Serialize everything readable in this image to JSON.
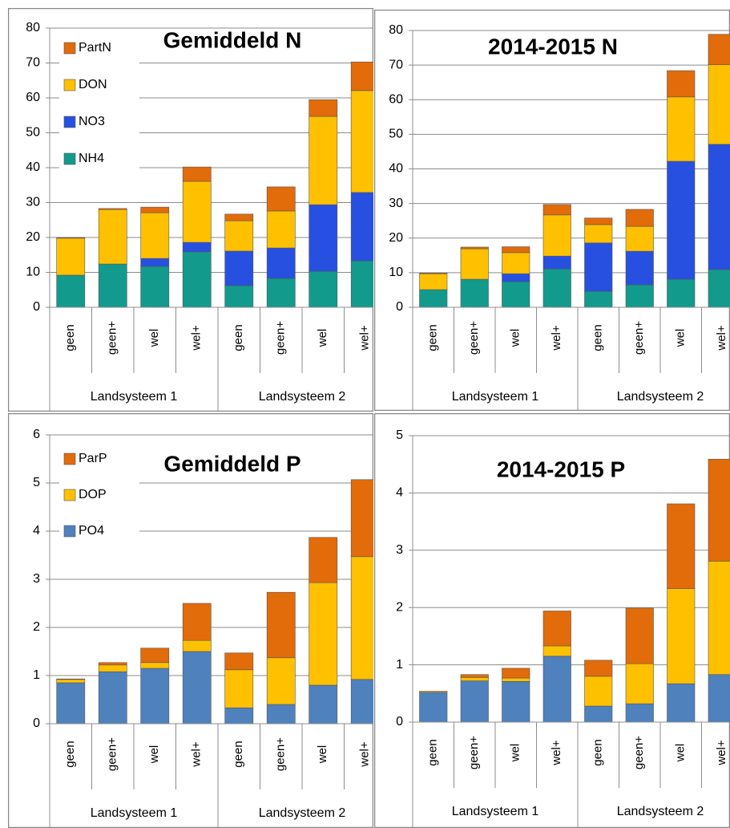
{
  "chart_data": [
    {
      "type": "bar",
      "stacked": true,
      "title": "Gemiddeld N",
      "categories": [
        "geen",
        "geen+",
        "wel",
        "wel+",
        "geen",
        "geen+",
        "wel",
        "wel+"
      ],
      "groups": [
        "Landsysteem 1",
        "Landsysteem 2"
      ],
      "ylim": [
        0,
        80
      ],
      "yticks": [
        0,
        10,
        20,
        30,
        40,
        50,
        60,
        70,
        80
      ],
      "grid": true,
      "legend": "top-left",
      "series": [
        {
          "name": "NH4",
          "color": "#129b8c",
          "values": [
            9.2,
            12.4,
            11.7,
            15.9,
            6.2,
            8.3,
            10.3,
            13.3
          ]
        },
        {
          "name": "NO3",
          "color": "#2750e0",
          "values": [
            0,
            0,
            2.3,
            2.7,
            9.9,
            8.7,
            19.1,
            19.6
          ]
        },
        {
          "name": "DON",
          "color": "#ffc000",
          "values": [
            10.6,
            15.6,
            13.1,
            17.5,
            8.7,
            10.6,
            25.3,
            29.2
          ]
        },
        {
          "name": "PartN",
          "color": "#e26b0a",
          "values": [
            0.2,
            0.3,
            1.6,
            4.1,
            1.9,
            6.9,
            4.8,
            8.2
          ]
        }
      ]
    },
    {
      "type": "bar",
      "stacked": true,
      "title": "2014-2015 N",
      "categories": [
        "geen",
        "geen+",
        "wel",
        "wel+",
        "geen",
        "geen+",
        "wel",
        "wel+"
      ],
      "groups": [
        "Landsysteem 1",
        "Landsysteem 2"
      ],
      "ylim": [
        0,
        80
      ],
      "yticks": [
        0,
        10,
        20,
        30,
        40,
        50,
        60,
        70,
        80
      ],
      "grid": true,
      "series": [
        {
          "color": "#129b8c",
          "values": [
            5.1,
            8.1,
            7.4,
            11.1,
            4.6,
            6.5,
            8.1,
            10.9
          ]
        },
        {
          "color": "#2750e0",
          "values": [
            0,
            0,
            2.3,
            3.7,
            14,
            9.7,
            34.1,
            36.2
          ]
        },
        {
          "color": "#ffc000",
          "values": [
            4.6,
            8.8,
            6.1,
            11.9,
            5.3,
            7.2,
            18.6,
            23
          ]
        },
        {
          "color": "#e26b0a",
          "values": [
            0.2,
            0.5,
            1.7,
            3,
            1.9,
            4.9,
            7.6,
            8.8
          ]
        }
      ]
    },
    {
      "type": "bar",
      "stacked": true,
      "title": "Gemiddeld P",
      "categories": [
        "geen",
        "geen+",
        "wel",
        "wel+",
        "geen",
        "geen+",
        "wel",
        "wel+"
      ],
      "groups": [
        "Landsysteem 1",
        "Landsysteem 2"
      ],
      "ylim": [
        0,
        6
      ],
      "yticks": [
        0,
        1,
        2,
        3,
        4,
        5,
        6
      ],
      "grid": true,
      "legend": "top-left",
      "series": [
        {
          "name": "PO4",
          "color": "#4f81bd",
          "values": [
            0.85,
            1.08,
            1.15,
            1.5,
            0.33,
            0.4,
            0.8,
            0.92
          ]
        },
        {
          "name": "DOP",
          "color": "#ffc000",
          "values": [
            0.07,
            0.14,
            0.12,
            0.23,
            0.79,
            0.97,
            2.13,
            2.55
          ]
        },
        {
          "name": "ParP",
          "color": "#e26b0a",
          "values": [
            0.01,
            0.05,
            0.3,
            0.77,
            0.35,
            1.36,
            0.94,
            1.6
          ]
        }
      ]
    },
    {
      "type": "bar",
      "stacked": true,
      "title": "2014-2015 P",
      "categories": [
        "geen",
        "geen+",
        "wel",
        "wel+",
        "geen",
        "geen+",
        "wel",
        "wel+"
      ],
      "groups": [
        "Landsysteem 1",
        "Landsysteem 2"
      ],
      "ylim": [
        0,
        5
      ],
      "yticks": [
        0,
        1,
        2,
        3,
        4,
        5
      ],
      "grid": true,
      "series": [
        {
          "color": "#4f81bd",
          "values": [
            0.52,
            0.72,
            0.71,
            1.15,
            0.28,
            0.32,
            0.67,
            0.83
          ]
        },
        {
          "color": "#ffc000",
          "values": [
            0.02,
            0.06,
            0.06,
            0.18,
            0.52,
            0.7,
            1.66,
            1.98
          ]
        },
        {
          "color": "#e26b0a",
          "values": [
            0,
            0.05,
            0.17,
            0.61,
            0.28,
            0.97,
            1.48,
            1.78
          ]
        }
      ]
    }
  ]
}
